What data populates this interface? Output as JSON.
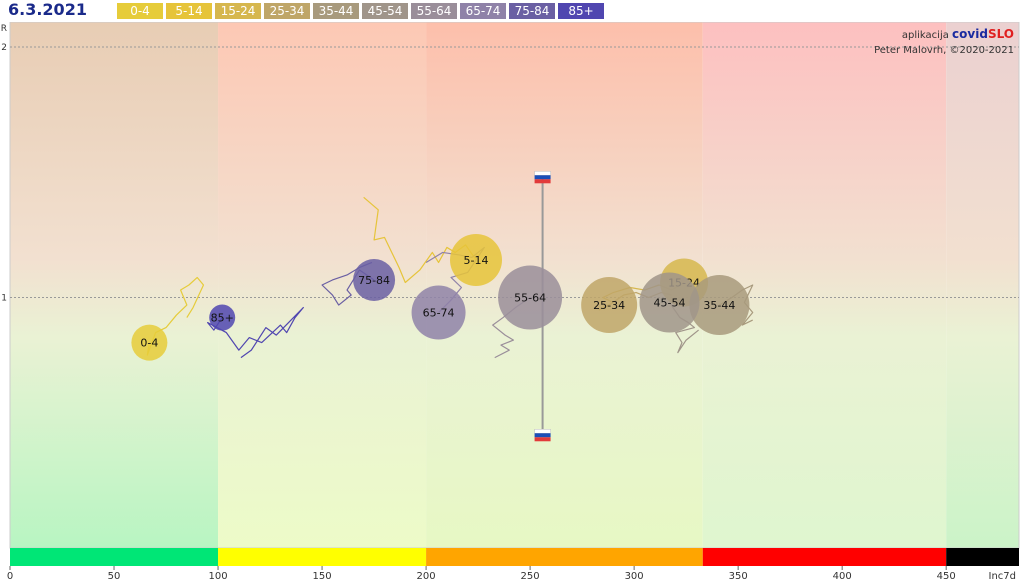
{
  "header": {
    "date": "6.3.2021"
  },
  "credit": {
    "prefix": "aplikacija",
    "app_part1": "covid",
    "app_part2": "SLO",
    "author": "Peter Malovrh, ©2020-2021"
  },
  "chart_data": {
    "type": "scatter",
    "title": "",
    "xlabel": "Inc7d",
    "ylabel": "R",
    "xlim": [
      0,
      485
    ],
    "ylim": [
      0,
      2.1
    ],
    "x_ticks": [
      0,
      50,
      100,
      150,
      200,
      250,
      300,
      350,
      400,
      450
    ],
    "y_ticks": [
      1,
      2
    ],
    "reference_lines": [
      {
        "axis": "y",
        "value": 1
      },
      {
        "axis": "y",
        "value": 2
      }
    ],
    "zones": [
      {
        "from": 0,
        "to": 100,
        "color": "#00e676"
      },
      {
        "from": 100,
        "to": 200,
        "color": "#ffff00"
      },
      {
        "from": 200,
        "to": 333,
        "color": "#ffa500"
      },
      {
        "from": 333,
        "to": 450,
        "color": "#ff0000"
      },
      {
        "from": 450,
        "to": 485,
        "color": "#000000"
      }
    ],
    "series": [
      {
        "name": "0-4",
        "color": "#e6cc3a",
        "x": 67,
        "y": 0.82,
        "size": 18,
        "trail": [
          [
            67,
            0.82
          ],
          [
            66,
            0.77
          ],
          [
            70,
            0.86
          ],
          [
            75,
            0.88
          ],
          [
            80,
            0.93
          ],
          [
            85,
            0.97
          ],
          [
            82,
            1.03
          ],
          [
            86,
            1.05
          ],
          [
            90,
            1.08
          ],
          [
            93,
            1.05
          ],
          [
            88,
            0.96
          ],
          [
            85,
            0.92
          ]
        ]
      },
      {
        "name": "5-14",
        "color": "#e6c43a",
        "x": 224,
        "y": 1.15,
        "size": 26,
        "trail": [
          [
            224,
            1.15
          ],
          [
            219,
            1.21
          ],
          [
            214,
            1.18
          ],
          [
            210,
            1.2
          ],
          [
            206,
            1.14
          ],
          [
            203,
            1.18
          ],
          [
            197,
            1.11
          ],
          [
            190,
            1.06
          ],
          [
            187,
            1.12
          ],
          [
            180,
            1.24
          ],
          [
            175,
            1.23
          ],
          [
            177,
            1.35
          ],
          [
            170,
            1.4
          ]
        ]
      },
      {
        "name": "15-24",
        "color": "#d6b74e",
        "x": 324,
        "y": 1.06,
        "size": 24,
        "trail": [
          [
            324,
            1.06
          ],
          [
            318,
            1.03
          ],
          [
            312,
            1.05
          ],
          [
            305,
            1.03
          ],
          [
            298,
            1.04
          ],
          [
            290,
            1.02
          ],
          [
            285,
            1.0
          ],
          [
            290,
            0.98
          ],
          [
            283,
            0.95
          ]
        ]
      },
      {
        "name": "25-34",
        "color": "#bfa668",
        "x": 288,
        "y": 0.97,
        "size": 28,
        "trail": [
          [
            288,
            0.97
          ],
          [
            295,
            1.01
          ],
          [
            301,
            1.02
          ],
          [
            307,
            1.0
          ],
          [
            313,
            1.02
          ],
          [
            318,
            1.01
          ]
        ]
      },
      {
        "name": "35-44",
        "color": "#a89a7d",
        "x": 341,
        "y": 0.97,
        "size": 30,
        "trail": [
          [
            341,
            0.97
          ],
          [
            347,
            1.0
          ],
          [
            352,
            1.03
          ],
          [
            357,
            1.05
          ],
          [
            353,
            0.98
          ],
          [
            357,
            0.94
          ],
          [
            352,
            0.89
          ],
          [
            357,
            0.91
          ]
        ]
      },
      {
        "name": "45-54",
        "color": "#a0958a",
        "x": 317,
        "y": 0.98,
        "size": 30,
        "trail": [
          [
            317,
            0.98
          ],
          [
            322,
            0.92
          ],
          [
            326,
            0.9
          ],
          [
            329,
            0.88
          ],
          [
            320,
            0.86
          ],
          [
            323,
            0.82
          ],
          [
            321,
            0.78
          ],
          [
            325,
            0.83
          ],
          [
            331,
            0.87
          ]
        ]
      },
      {
        "name": "55-64",
        "color": "#9a8e9a",
        "x": 250,
        "y": 1.0,
        "size": 32,
        "trail": [
          [
            250,
            1.0
          ],
          [
            243,
            0.96
          ],
          [
            237,
            0.92
          ],
          [
            232,
            0.89
          ],
          [
            238,
            0.85
          ],
          [
            242,
            0.83
          ],
          [
            236,
            0.81
          ],
          [
            240,
            0.79
          ],
          [
            233,
            0.76
          ]
        ]
      },
      {
        "name": "65-74",
        "color": "#8f82a8",
        "x": 206,
        "y": 0.94,
        "size": 27,
        "trail": [
          [
            206,
            0.94
          ],
          [
            212,
            0.99
          ],
          [
            217,
            1.04
          ],
          [
            212,
            1.08
          ],
          [
            220,
            1.1
          ],
          [
            228,
            1.2
          ],
          [
            222,
            1.16
          ],
          [
            216,
            1.17
          ],
          [
            208,
            1.18
          ],
          [
            200,
            1.14
          ]
        ]
      },
      {
        "name": "75-84",
        "color": "#6a5fa3",
        "x": 175,
        "y": 1.07,
        "size": 21,
        "trail": [
          [
            175,
            1.07
          ],
          [
            168,
            1.11
          ],
          [
            162,
            1.03
          ],
          [
            164,
            1.01
          ],
          [
            158,
            0.97
          ],
          [
            155,
            1.01
          ],
          [
            150,
            1.05
          ],
          [
            155,
            1.07
          ],
          [
            162,
            1.09
          ],
          [
            168,
            1.12
          ],
          [
            174,
            1.14
          ]
        ]
      },
      {
        "name": "85+",
        "color": "#5046b0",
        "x": 102,
        "y": 0.92,
        "size": 13,
        "trail": [
          [
            102,
            0.92
          ],
          [
            98,
            0.87
          ],
          [
            95,
            0.9
          ],
          [
            104,
            0.86
          ],
          [
            110,
            0.79
          ],
          [
            115,
            0.84
          ],
          [
            121,
            0.82
          ],
          [
            130,
            0.89
          ],
          [
            133,
            0.86
          ],
          [
            137,
            0.92
          ],
          [
            141,
            0.96
          ],
          [
            128,
            0.85
          ],
          [
            123,
            0.88
          ],
          [
            116,
            0.79
          ],
          [
            111,
            0.76
          ]
        ]
      }
    ],
    "slovenia_range": {
      "x": 256,
      "y_low": 0.45,
      "y_high": 1.48
    }
  }
}
